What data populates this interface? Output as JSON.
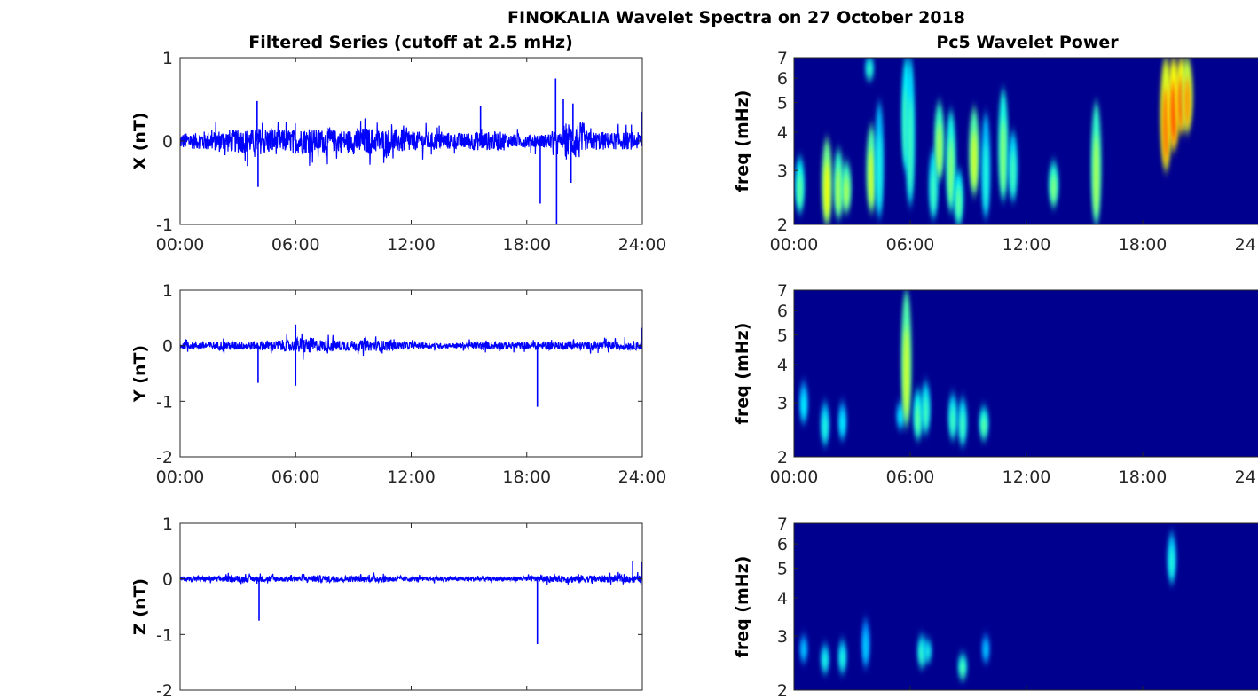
{
  "chart_data": {
    "type": "line",
    "title": "FINOKALIA Wavelet Spectra on 27 October 2018",
    "left_title": "Filtered Series (cutoff at 2.5 mHz)",
    "right_title": "Pc5 Wavelet Power",
    "x_ticks": [
      "00:00",
      "06:00",
      "12:00",
      "18:00",
      "24:00"
    ],
    "x_range_hours": [
      0,
      24
    ],
    "freq_label": "freq (mHz)",
    "freq_ticks": [
      2,
      3,
      4,
      5,
      6,
      7
    ],
    "freq_range": [
      2,
      7
    ],
    "colors": {
      "line": "#0000ff",
      "bg": "#00008f"
    },
    "series": [
      {
        "name": "X",
        "ylabel": "X (nT)",
        "ylim": [
          -1,
          1
        ],
        "yticks": [
          -1,
          0,
          1
        ],
        "show_xticks": true,
        "hourly_amplitude": [
          0.12,
          0.15,
          0.17,
          0.18,
          0.2,
          0.17,
          0.19,
          0.18,
          0.17,
          0.2,
          0.18,
          0.18,
          0.14,
          0.13,
          0.12,
          0.14,
          0.14,
          0.1,
          0.1,
          0.12,
          0.28,
          0.14,
          0.13,
          0.13
        ],
        "spikes": [
          [
            4.0,
            0.48
          ],
          [
            4.05,
            -0.55
          ],
          [
            3.5,
            -0.3
          ],
          [
            15.6,
            0.42
          ],
          [
            18.7,
            -0.75
          ],
          [
            19.5,
            0.75
          ],
          [
            19.55,
            -1.0
          ],
          [
            19.9,
            0.5
          ],
          [
            20.4,
            0.45
          ],
          [
            20.3,
            -0.5
          ],
          [
            23.95,
            0.35
          ]
        ],
        "wavelet_blobs": [
          [
            0.3,
            2.2,
            3.3,
            0.4
          ],
          [
            1.7,
            2.0,
            3.8,
            0.6
          ],
          [
            2.3,
            2.1,
            3.5,
            0.5
          ],
          [
            2.7,
            2.2,
            3.2,
            0.5
          ],
          [
            4.0,
            2.2,
            4.2,
            0.55
          ],
          [
            4.4,
            2.1,
            5.0,
            0.3
          ],
          [
            3.9,
            6.0,
            7.0,
            0.35
          ],
          [
            5.8,
            3.0,
            7.0,
            0.4
          ],
          [
            6.0,
            2.3,
            7.0,
            0.35
          ],
          [
            7.2,
            2.1,
            3.5,
            0.35
          ],
          [
            7.5,
            2.8,
            5.0,
            0.5
          ],
          [
            8.1,
            2.2,
            4.7,
            0.45
          ],
          [
            8.5,
            2.0,
            3.0,
            0.4
          ],
          [
            9.3,
            2.5,
            4.8,
            0.55
          ],
          [
            9.9,
            2.1,
            4.6,
            0.3
          ],
          [
            10.8,
            2.4,
            5.5,
            0.45
          ],
          [
            11.3,
            2.4,
            4.0,
            0.35
          ],
          [
            13.4,
            2.3,
            3.2,
            0.45
          ],
          [
            15.6,
            2.0,
            5.0,
            0.5
          ],
          [
            19.2,
            3.0,
            7.0,
            0.8
          ],
          [
            19.6,
            3.5,
            7.0,
            0.85
          ],
          [
            20.0,
            4.0,
            7.0,
            0.85
          ],
          [
            20.3,
            4.0,
            7.0,
            0.75
          ]
        ]
      },
      {
        "name": "Y",
        "ylabel": "Y (nT)",
        "ylim": [
          -2,
          1
        ],
        "yticks": [
          -2,
          -1,
          0,
          1
        ],
        "show_xticks": true,
        "hourly_amplitude": [
          0.08,
          0.09,
          0.1,
          0.1,
          0.11,
          0.13,
          0.18,
          0.14,
          0.12,
          0.12,
          0.12,
          0.09,
          0.07,
          0.06,
          0.06,
          0.08,
          0.09,
          0.08,
          0.09,
          0.09,
          0.09,
          0.09,
          0.09,
          0.1
        ],
        "spikes": [
          [
            4.05,
            -0.67
          ],
          [
            6.0,
            -0.72
          ],
          [
            6.0,
            0.38
          ],
          [
            18.55,
            -1.1
          ],
          [
            23.95,
            0.32
          ]
        ],
        "wavelet_blobs": [
          [
            0.5,
            2.6,
            3.5,
            0.25
          ],
          [
            1.6,
            2.2,
            3.0,
            0.3
          ],
          [
            2.5,
            2.3,
            3.0,
            0.25
          ],
          [
            5.5,
            2.5,
            3.0,
            0.25
          ],
          [
            5.8,
            2.5,
            7.0,
            0.55
          ],
          [
            6.4,
            2.3,
            3.3,
            0.4
          ],
          [
            6.8,
            2.4,
            3.5,
            0.35
          ],
          [
            8.2,
            2.3,
            3.2,
            0.35
          ],
          [
            8.7,
            2.2,
            3.1,
            0.35
          ],
          [
            9.8,
            2.3,
            2.9,
            0.4
          ]
        ]
      },
      {
        "name": "Z",
        "ylabel": "Z (nT)",
        "ylim": [
          -2,
          1
        ],
        "yticks": [
          -2,
          -1,
          0,
          1
        ],
        "show_xticks": false,
        "hourly_amplitude": [
          0.05,
          0.06,
          0.07,
          0.07,
          0.07,
          0.06,
          0.07,
          0.08,
          0.07,
          0.07,
          0.08,
          0.06,
          0.05,
          0.05,
          0.05,
          0.06,
          0.05,
          0.05,
          0.06,
          0.07,
          0.09,
          0.08,
          0.08,
          0.08
        ],
        "spikes": [
          [
            4.1,
            -0.75
          ],
          [
            18.55,
            -1.17
          ],
          [
            23.5,
            0.33
          ],
          [
            23.95,
            0.3
          ]
        ],
        "wavelet_blobs": [
          [
            0.5,
            2.5,
            3.0,
            0.2
          ],
          [
            1.6,
            2.3,
            2.8,
            0.3
          ],
          [
            2.5,
            2.3,
            2.9,
            0.3
          ],
          [
            3.7,
            2.4,
            3.4,
            0.2
          ],
          [
            6.6,
            2.4,
            3.0,
            0.35
          ],
          [
            6.9,
            2.5,
            2.9,
            0.3
          ],
          [
            8.7,
            2.2,
            2.6,
            0.4
          ],
          [
            9.9,
            2.5,
            3.0,
            0.2
          ],
          [
            19.5,
            4.5,
            6.5,
            0.3
          ]
        ]
      }
    ]
  }
}
